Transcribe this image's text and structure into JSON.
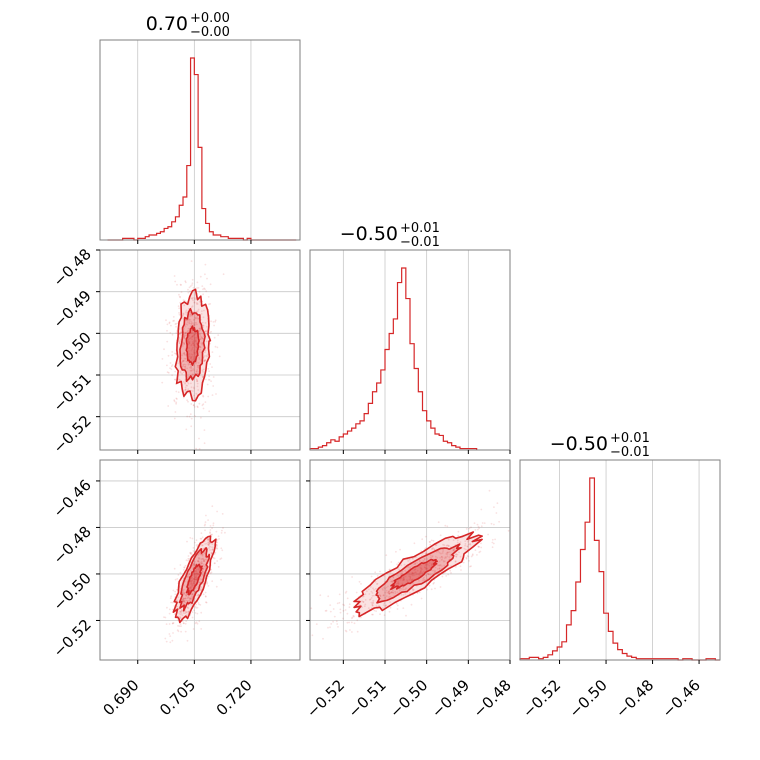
{
  "chart_data": {
    "type": "corner",
    "color": "#d62728",
    "panel_frame_color": "#7f7f7f",
    "grid": true,
    "parameters": [
      {
        "index": 0,
        "range": [
          0.68,
          0.733
        ],
        "ticks": [
          0.69,
          0.705,
          0.72
        ],
        "tick_labels": [
          "0.690",
          "0.705",
          "0.720"
        ],
        "title": {
          "value": "0.70",
          "plus": "+0.00",
          "minus": "−0.00"
        }
      },
      {
        "index": 1,
        "range": [
          -0.528,
          -0.48
        ],
        "ticks": [
          -0.52,
          -0.51,
          -0.5,
          -0.49,
          -0.48
        ],
        "tick_labels": [
          "−0.52",
          "−0.51",
          "−0.50",
          "−0.49",
          "−0.48"
        ],
        "title": {
          "value": "−0.50",
          "plus": "+0.01",
          "minus": "−0.01"
        }
      },
      {
        "index": 2,
        "range": [
          -0.537,
          -0.451
        ],
        "ticks": [
          -0.52,
          -0.5,
          -0.48,
          -0.46
        ],
        "tick_labels": [
          "−0.52",
          "−0.50",
          "−0.48",
          "−0.46"
        ],
        "title": {
          "value": "−0.50",
          "plus": "+0.01",
          "minus": "−0.01"
        }
      }
    ],
    "histograms": [
      {
        "param": 0,
        "edges_start": 0.682,
        "bin_width": 0.001,
        "counts": [
          0,
          0,
          0,
          0,
          1,
          1,
          1,
          0,
          1,
          1,
          2,
          3,
          3,
          4,
          5,
          7,
          8,
          11,
          14,
          21,
          26,
          45,
          110,
          100,
          56,
          19,
          10,
          5,
          3,
          3,
          2,
          2,
          1,
          1,
          1,
          1,
          0,
          1,
          0,
          0,
          0,
          0,
          0,
          0,
          0,
          0,
          0,
          0,
          0,
          0
        ]
      },
      {
        "param": 1,
        "edges_start": -0.528,
        "bin_width": 0.001,
        "counts": [
          1,
          1,
          2,
          3,
          5,
          7,
          6,
          9,
          11,
          13,
          15,
          18,
          20,
          25,
          32,
          40,
          46,
          55,
          69,
          80,
          90,
          115,
          125,
          104,
          73,
          56,
          40,
          27,
          20,
          15,
          11,
          10,
          6,
          5,
          3,
          2,
          1,
          1,
          1,
          1
        ]
      },
      {
        "param": 2,
        "edges_start": -0.537,
        "bin_width": 0.002,
        "counts": [
          1,
          1,
          2,
          2,
          1,
          2,
          4,
          7,
          10,
          14,
          27,
          38,
          60,
          85,
          106,
          140,
          92,
          68,
          36,
          22,
          13,
          8,
          5,
          3,
          2,
          1,
          1,
          1,
          1,
          1,
          1,
          1,
          1,
          1,
          0,
          1,
          1,
          0,
          0,
          0,
          1,
          1,
          0
        ]
      }
    ],
    "pairs": [
      {
        "x_param": 0,
        "y_param": 1,
        "center": [
          0.7045,
          -0.503
        ],
        "sd": [
          0.0023,
          0.006
        ],
        "correlation": 0.1,
        "contour_levels": [
          "inner",
          "middle",
          "outer"
        ]
      },
      {
        "x_param": 0,
        "y_param": 2,
        "center": [
          0.705,
          -0.502
        ],
        "sd": [
          0.0026,
          0.009
        ],
        "correlation": 0.75,
        "contour_levels": [
          "inner",
          "middle",
          "outer"
        ]
      },
      {
        "x_param": 1,
        "y_param": 2,
        "center": [
          -0.503,
          -0.5
        ],
        "sd": [
          0.0075,
          0.0085
        ],
        "correlation": 0.88,
        "contour_levels": [
          "inner",
          "middle",
          "outer"
        ]
      }
    ]
  }
}
